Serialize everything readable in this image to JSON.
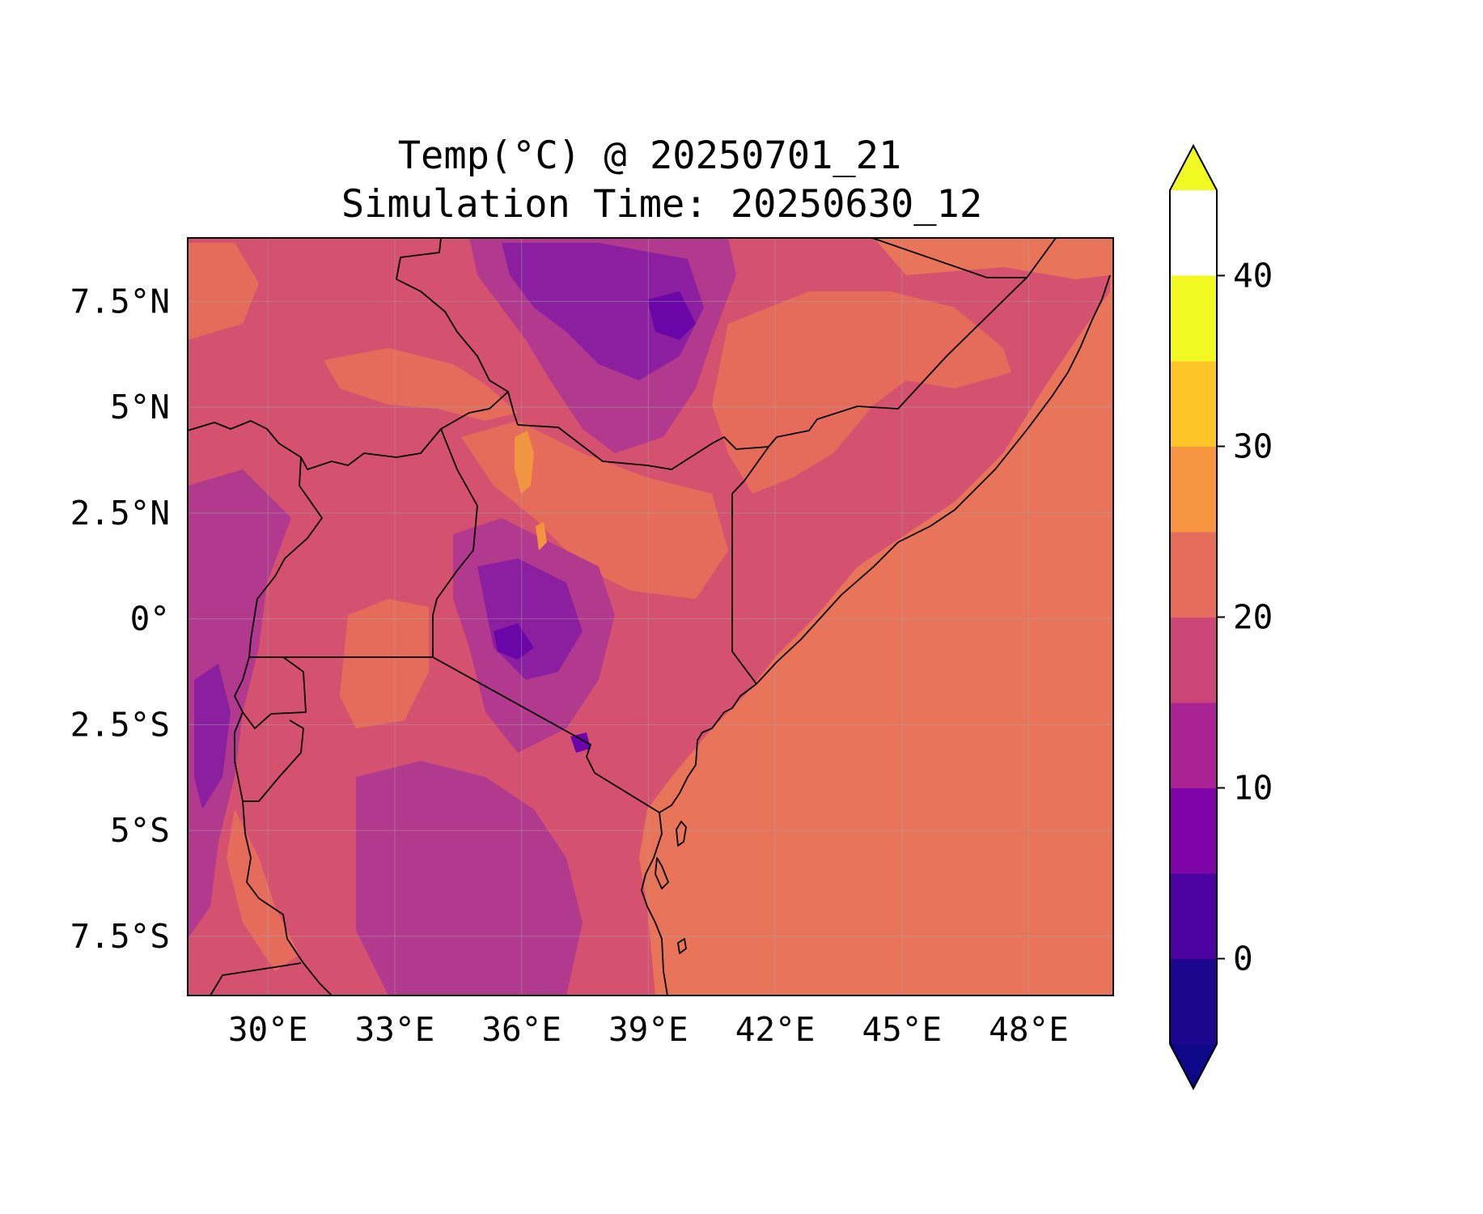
{
  "chart_data": {
    "type": "heatmap",
    "title_line1": "Temp(°C) @ 20250701_21",
    "title_line2": "Simulation Time: 20250630_12",
    "x_ticks": [
      "30°E",
      "33°E",
      "36°E",
      "39°E",
      "42°E",
      "45°E",
      "48°E"
    ],
    "x_tick_values": [
      30,
      33,
      36,
      39,
      42,
      45,
      48
    ],
    "y_ticks": [
      "7.5°N",
      "5°N",
      "2.5°N",
      "0°",
      "2.5°S",
      "5°S",
      "7.5°S"
    ],
    "y_tick_values": [
      7.5,
      5,
      2.5,
      0,
      -2.5,
      -5,
      -7.5
    ],
    "xlim": [
      28.1,
      50.0
    ],
    "ylim": [
      -8.9,
      9.0
    ],
    "colormap": "plasma",
    "colorbar": {
      "levels": [
        -5,
        0,
        5,
        10,
        15,
        20,
        25,
        30,
        35,
        40,
        45
      ],
      "tick_labels": [
        "0",
        "10",
        "20",
        "30",
        "40"
      ],
      "tick_values": [
        0,
        10,
        20,
        30,
        40
      ],
      "extend": "both",
      "colors": [
        "#1b068d",
        "#4c02a1",
        "#7e03a8",
        "#a92395",
        "#cc4778",
        "#e66c5c",
        "#f89540",
        "#fdc527",
        "#f0f921"
      ],
      "under_color": "#0d0887",
      "over_color": "#f0f921"
    },
    "field_colors": {
      "ocean": "#e8745a",
      "land_warm": "#e56c5b",
      "land_mid": "#d4526f",
      "land_cool": "#b23a8e",
      "land_cold": "#8c1fa0",
      "land_coldest": "#6a05a8",
      "hot_spot": "#f3943f"
    },
    "grid": true
  }
}
